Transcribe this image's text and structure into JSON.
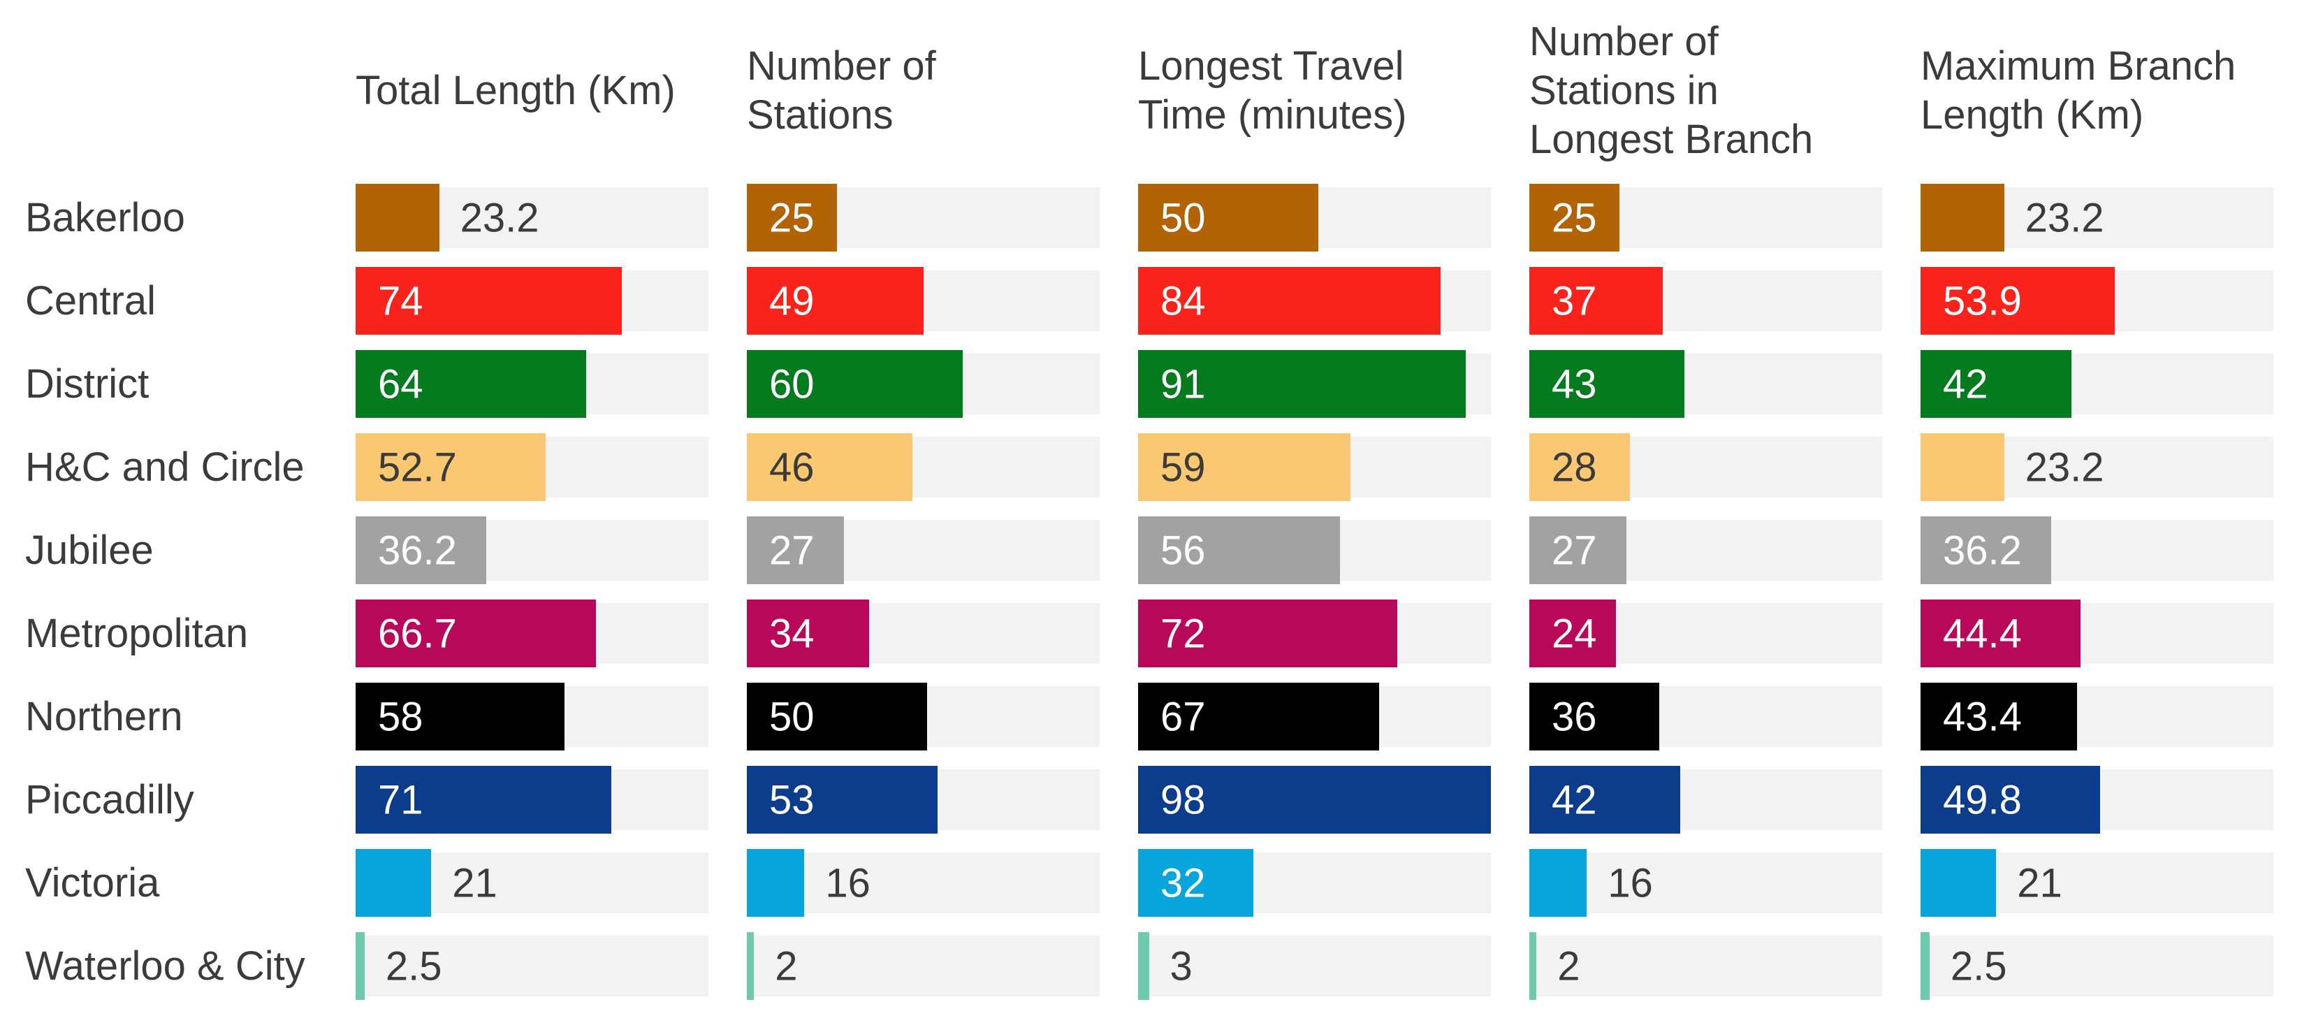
{
  "headers_display": [
    "Total Length (Km)",
    "Number of\nStations",
    "Longest Travel\nTime (minutes)",
    "Number of\nStations in\nLongest Branch",
    "Maximum Branch\nLength (Km)"
  ],
  "palette": {
    "track_color": "#f2f2f2",
    "text_color": "#3b3b3b",
    "bar_label_light": "#ffffff",
    "bar_label_dark": "#3b3b3b"
  },
  "chart_data": {
    "type": "bar",
    "orientation": "horizontal",
    "small_multiples": true,
    "title": "",
    "xlim": [
      0,
      98
    ],
    "grid": false,
    "value_labels": true,
    "legend_position": "none",
    "columns": [
      "Total Length (Km)",
      "Number of Stations",
      "Longest Travel Time (minutes)",
      "Number of Stations in Longest Branch",
      "Maximum Branch Length (Km)"
    ],
    "categories": [
      "Bakerloo",
      "Central",
      "District",
      "H&C and Circle",
      "Jubilee",
      "Metropolitan",
      "Northern",
      "Piccadilly",
      "Victoria",
      "Waterloo & City"
    ],
    "category_colors": [
      "#B26305",
      "#FA231B",
      "#057A1E",
      "#FAC872",
      "#A0A2A4",
      "#B8085A",
      "#000000",
      "#0C3D8C",
      "#06A5DC",
      "#6FC9AE"
    ],
    "label_dark_on_bar": [
      false,
      false,
      false,
      true,
      false,
      false,
      false,
      false,
      false,
      false
    ],
    "series": [
      {
        "name": "Total Length (Km)",
        "values": [
          23.2,
          74,
          64,
          52.7,
          36.2,
          66.7,
          58,
          71,
          21,
          2.5
        ]
      },
      {
        "name": "Number of Stations",
        "values": [
          25,
          49,
          60,
          46,
          27,
          34,
          50,
          53,
          16,
          2
        ]
      },
      {
        "name": "Longest Travel Time (minutes)",
        "values": [
          50,
          84,
          91,
          59,
          56,
          72,
          67,
          98,
          32,
          3
        ]
      },
      {
        "name": "Number of Stations in Longest Branch",
        "values": [
          25,
          37,
          43,
          28,
          27,
          24,
          36,
          42,
          16,
          2
        ]
      },
      {
        "name": "Maximum Branch Length (Km)",
        "values": [
          23.2,
          53.9,
          42,
          23.2,
          36.2,
          44.4,
          43.4,
          49.8,
          21,
          2.5
        ]
      }
    ]
  }
}
